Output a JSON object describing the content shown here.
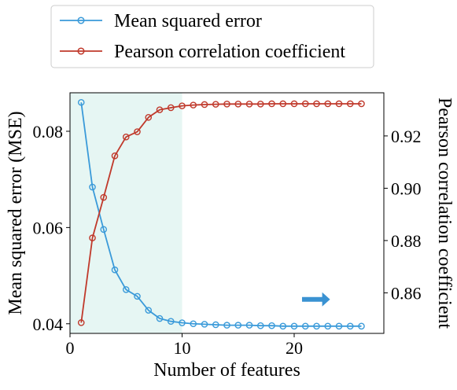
{
  "chart_data": {
    "type": "line",
    "title": "",
    "xlabel": "Number of features",
    "ylabel": "Mean squared error (MSE)",
    "ylabel_right": "Pearson correlation coefficient",
    "xlim": [
      0,
      28
    ],
    "ylim": [
      0.038,
      0.088
    ],
    "ylim_right": [
      0.8445,
      0.9365
    ],
    "xticks": [
      0,
      10,
      20
    ],
    "xtick_labels": [
      "0",
      "10",
      "20"
    ],
    "yticks": [
      0.04,
      0.06,
      0.08
    ],
    "ytick_labels": [
      "0.04",
      "0.06",
      "0.08"
    ],
    "yticks_right": [
      0.86,
      0.88,
      0.9,
      0.92
    ],
    "ytick_labels_right": [
      "0.86",
      "0.88",
      "0.90",
      "0.92"
    ],
    "grid": false,
    "legend_position": "top-center, outside plot",
    "shaded_region": {
      "x_from": 0,
      "x_to": 10,
      "color": "#e6f6f3"
    },
    "arrow": {
      "direction": "right",
      "color": "#3a92d2",
      "x_from": 20.7,
      "x_to": 23.2,
      "y_right": 0.8575
    },
    "series": [
      {
        "name": "Mean squared error",
        "axis": "left",
        "color": "#3a9ad9",
        "marker": "open-circle",
        "x": [
          1,
          2,
          3,
          4,
          5,
          6,
          7,
          8,
          9,
          10,
          11,
          12,
          13,
          14,
          15,
          16,
          17,
          18,
          19,
          20,
          21,
          22,
          23,
          24,
          25,
          26
        ],
        "values": [
          0.086,
          0.0684,
          0.0596,
          0.0512,
          0.0471,
          0.0457,
          0.0428,
          0.0411,
          0.0405,
          0.0402,
          0.04,
          0.0399,
          0.0398,
          0.0397,
          0.0397,
          0.0397,
          0.0396,
          0.0396,
          0.0395,
          0.0395,
          0.0395,
          0.0395,
          0.0395,
          0.0395,
          0.0395,
          0.0395
        ]
      },
      {
        "name": "Pearson correlation coefficient",
        "axis": "right",
        "color": "#c0392b",
        "marker": "open-circle",
        "x": [
          1,
          2,
          3,
          4,
          5,
          6,
          7,
          8,
          9,
          10,
          11,
          12,
          13,
          14,
          15,
          16,
          17,
          18,
          19,
          20,
          21,
          22,
          23,
          24,
          25,
          26
        ],
        "values": [
          0.8486,
          0.881,
          0.8965,
          0.9124,
          0.9196,
          0.9216,
          0.9271,
          0.93,
          0.9308,
          0.9315,
          0.9318,
          0.932,
          0.9321,
          0.9322,
          0.9322,
          0.9322,
          0.9322,
          0.9323,
          0.9323,
          0.9323,
          0.9323,
          0.9323,
          0.9323,
          0.9323,
          0.9323,
          0.9323
        ]
      }
    ]
  }
}
